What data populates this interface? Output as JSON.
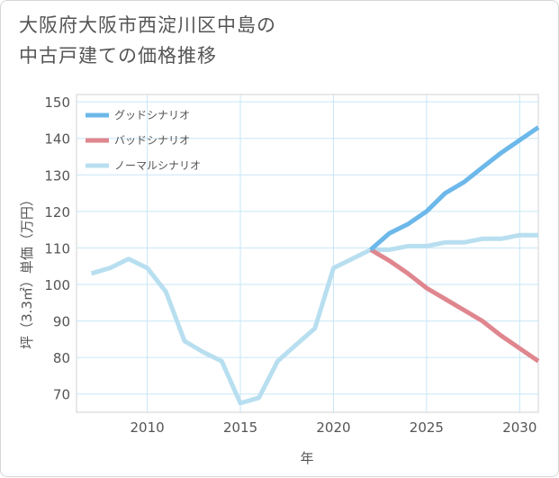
{
  "title": {
    "line1": "大阪府大阪市西淀川区中島の",
    "line2": "中古戸建ての価格推移"
  },
  "chart_data": {
    "type": "line",
    "xlabel": "年",
    "ylabel": "坪（3.3㎡）単価（万円）",
    "xlim": [
      2006.2,
      2031
    ],
    "ylim": [
      65,
      152
    ],
    "xticks": [
      2010,
      2015,
      2020,
      2025,
      2030
    ],
    "yticks": [
      70,
      80,
      90,
      100,
      110,
      120,
      130,
      140,
      150
    ],
    "grid": true,
    "legend_position": "top-left",
    "series": [
      {
        "name": "グッドシナリオ",
        "color": "#6cb8ea",
        "x": [
          2022,
          2023,
          2024,
          2025,
          2026,
          2027,
          2028,
          2029,
          2030,
          2031
        ],
        "y": [
          109.5,
          114,
          116.5,
          120,
          125,
          128,
          132,
          136,
          139.5,
          143
        ]
      },
      {
        "name": "バッドシナリオ",
        "color": "#df868e",
        "x": [
          2022,
          2023,
          2024,
          2025,
          2026,
          2027,
          2028,
          2029,
          2030,
          2031
        ],
        "y": [
          109.5,
          106.5,
          103,
          99,
          96,
          93,
          90,
          86,
          82.5,
          79
        ]
      },
      {
        "name": "ノーマルシナリオ",
        "color": "#b8dff0",
        "x": [
          2007,
          2008,
          2009,
          2010,
          2011,
          2012,
          2013,
          2014,
          2015,
          2016,
          2017,
          2018,
          2019,
          2020,
          2021,
          2022,
          2023,
          2024,
          2025,
          2026,
          2027,
          2028,
          2029,
          2030,
          2031
        ],
        "y": [
          103,
          104.5,
          107,
          104.5,
          98,
          84.5,
          81.5,
          79,
          67.5,
          69,
          79,
          83.5,
          88,
          104.5,
          107,
          109.5,
          109.5,
          110.5,
          110.5,
          111.5,
          111.5,
          112.5,
          112.5,
          113.5,
          113.5
        ]
      }
    ]
  }
}
